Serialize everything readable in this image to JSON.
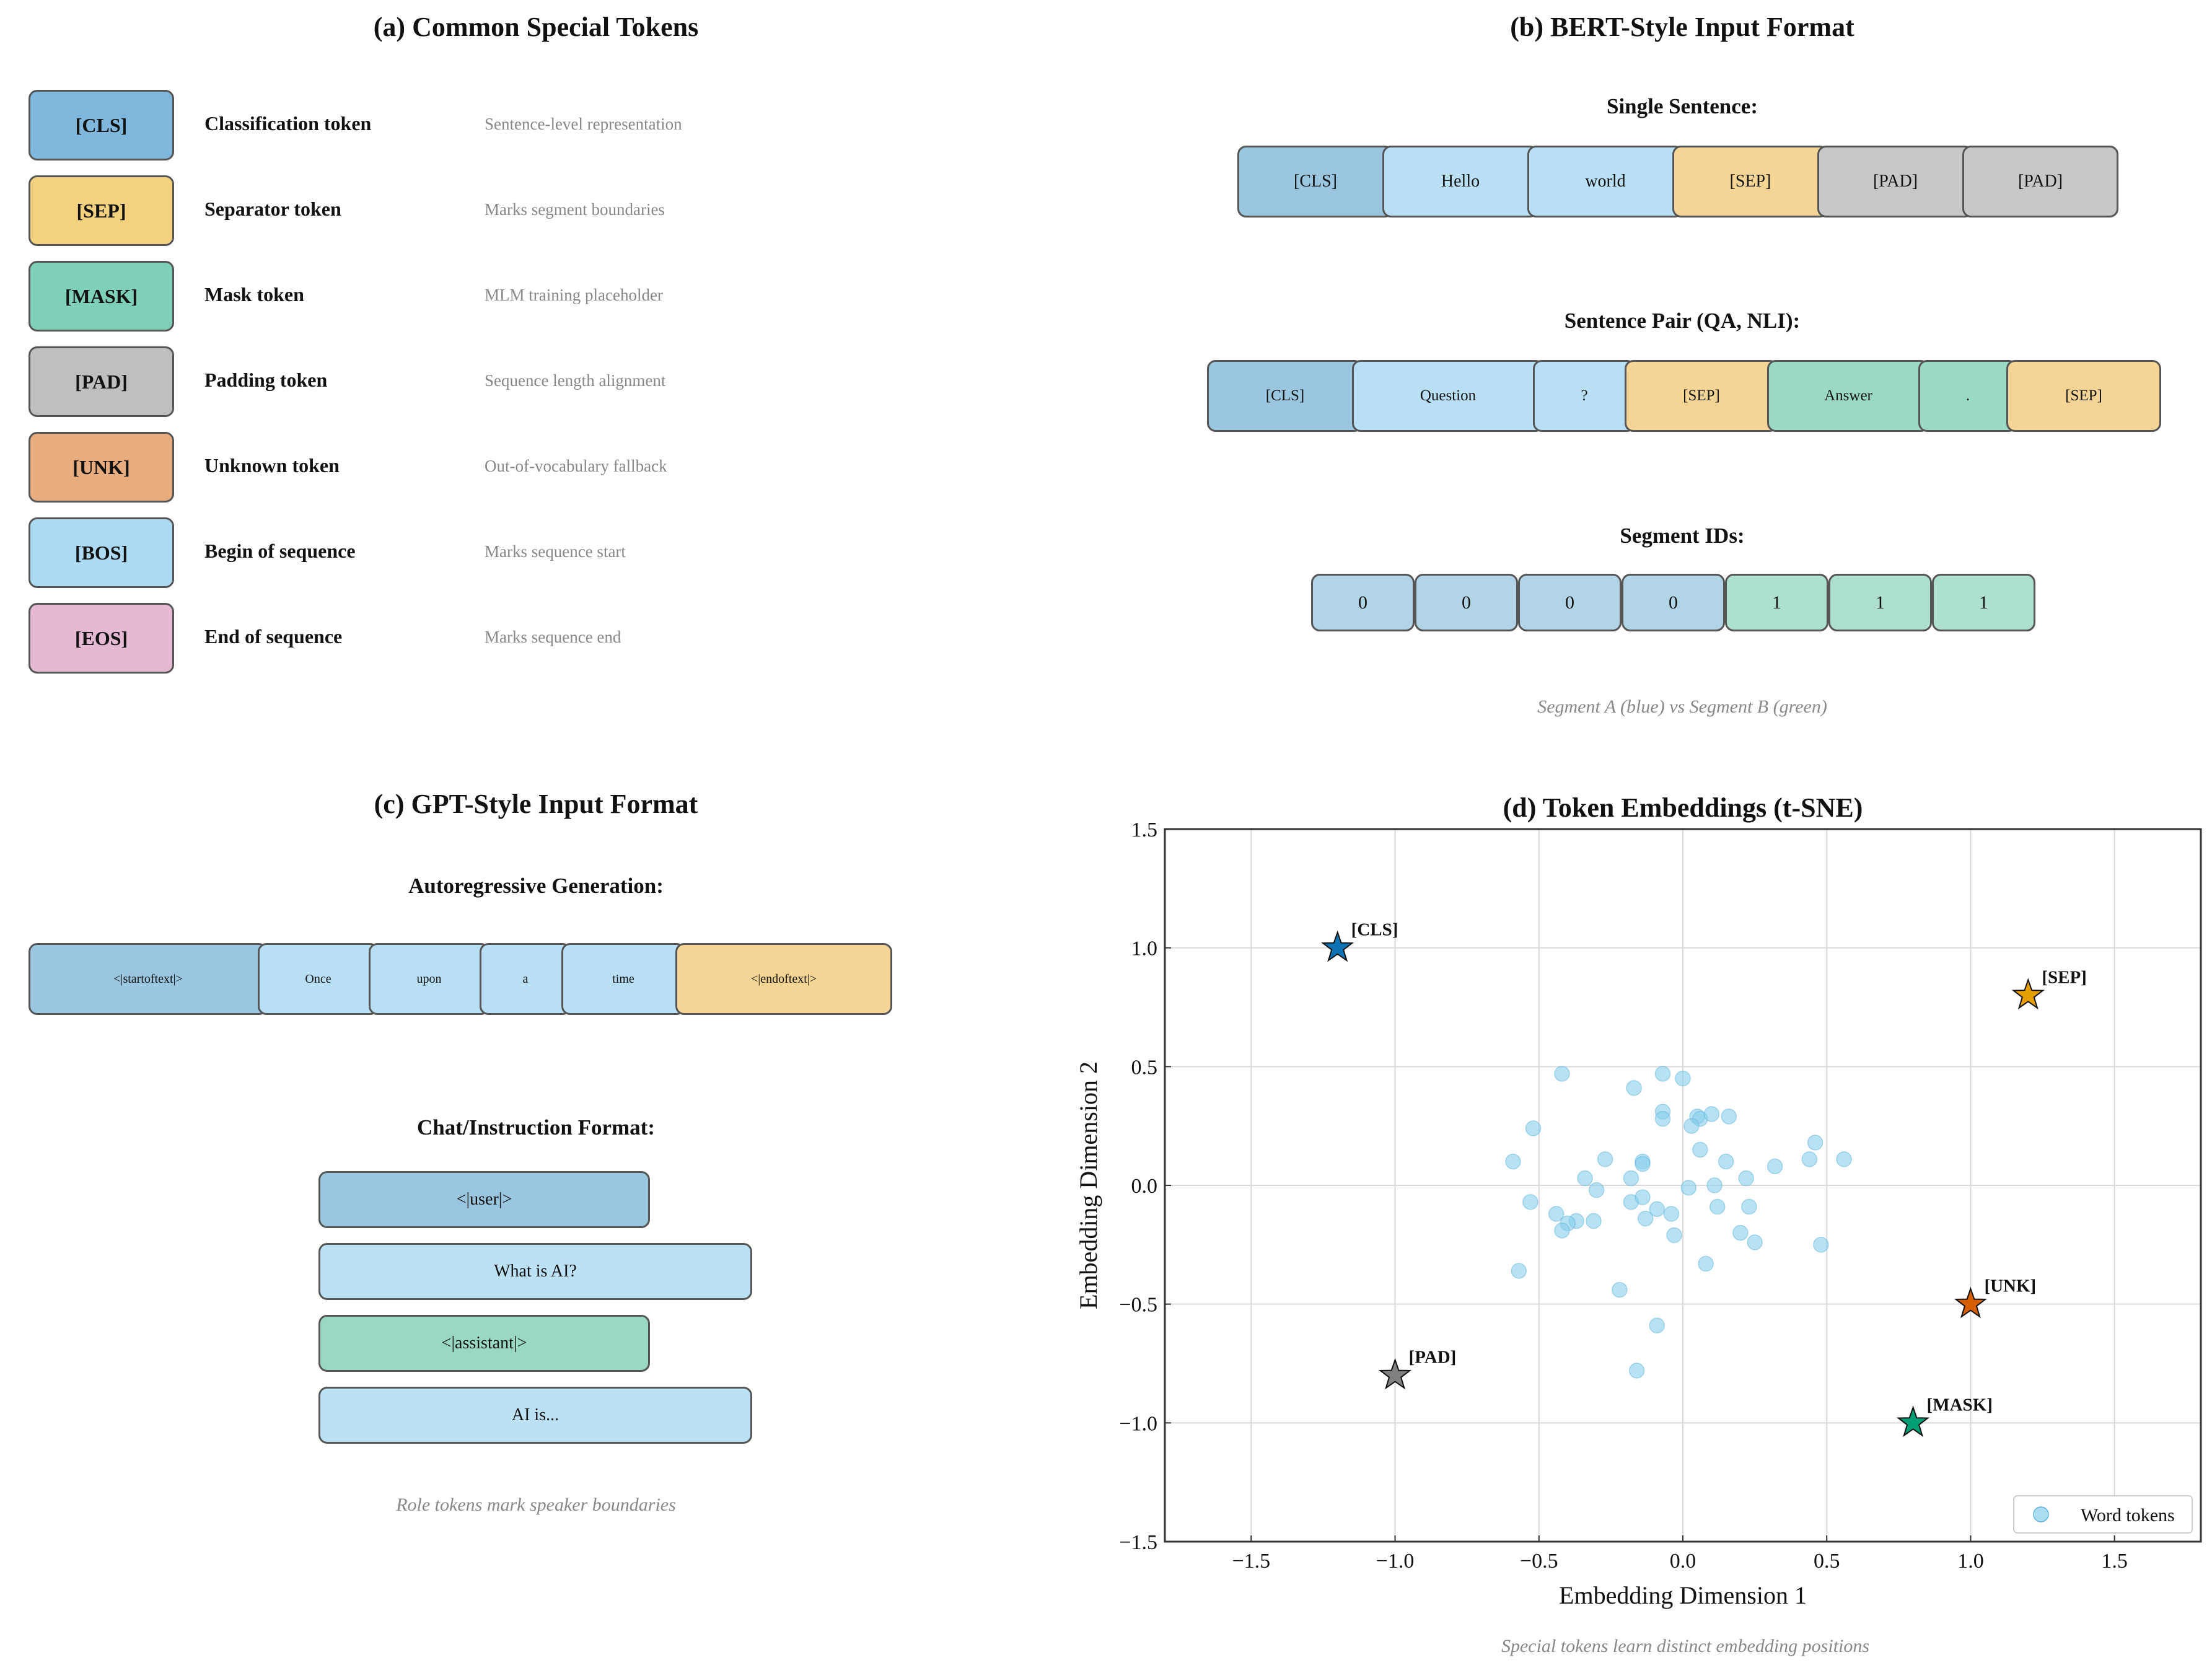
{
  "panel_a": {
    "title": "(a) Common Special Tokens",
    "tokens": [
      {
        "token": "[CLS]",
        "name": "Classification token",
        "desc": "Sentence-level representation",
        "color": "#7fb8dc"
      },
      {
        "token": "[SEP]",
        "name": "Separator token",
        "desc": "Marks segment boundaries",
        "color": "#f3d27f"
      },
      {
        "token": "[MASK]",
        "name": "Mask token",
        "desc": "MLM training placeholder",
        "color": "#7fd0b8"
      },
      {
        "token": "[PAD]",
        "name": "Padding token",
        "desc": "Sequence length alignment",
        "color": "#bfbfbf"
      },
      {
        "token": "[UNK]",
        "name": "Unknown token",
        "desc": "Out-of-vocabulary fallback",
        "color": "#e8ad7f"
      },
      {
        "token": "[BOS]",
        "name": "Begin of sequence",
        "desc": "Marks sequence start",
        "color": "#acdaf3"
      },
      {
        "token": "[EOS]",
        "name": "End of sequence",
        "desc": "Marks sequence end",
        "color": "#e5b9d1"
      }
    ]
  },
  "panel_b": {
    "title": "(b) BERT-Style Input Format",
    "single_label": "Single Sentence:",
    "single_tokens": [
      "[CLS]",
      "Hello",
      "world",
      "[SEP]",
      "[PAD]",
      "[PAD]"
    ],
    "pair_label": "Sentence Pair (QA, NLI):",
    "pair_tokens": [
      "[CLS]",
      "Question",
      "?",
      "[SEP]",
      "Answer",
      ".",
      "[SEP]"
    ],
    "segment_label": "Segment IDs:",
    "segment_ids": [
      "0",
      "0",
      "0",
      "0",
      "1",
      "1",
      "1"
    ],
    "caption": "Segment A (blue) vs Segment B (green)"
  },
  "panel_c": {
    "title": "(c) GPT-Style Input Format",
    "auto_label": "Autoregressive Generation:",
    "auto_tokens": [
      "<|startoftext|>",
      "Once",
      "upon",
      "a",
      "time",
      "<|endoftext|>"
    ],
    "chat_label": "Chat/Instruction Format:",
    "chat_lines": [
      "<|user|>",
      "What is AI?",
      "<|assistant|>",
      "AI is..."
    ],
    "caption": "Role tokens mark speaker boundaries"
  },
  "panel_d": {
    "caption": "Special tokens learn distinct embedding positions"
  },
  "chart_data": {
    "type": "scatter",
    "title": "(d) Token Embeddings (t-SNE)",
    "xlabel": "Embedding Dimension 1",
    "ylabel": "Embedding Dimension 2",
    "xlim": [
      -1.8,
      1.8
    ],
    "ylim": [
      -1.5,
      1.5
    ],
    "xticks": [
      -1.5,
      -1.0,
      -0.5,
      0.0,
      0.5,
      1.0,
      1.5
    ],
    "yticks": [
      -1.5,
      -1.0,
      -0.5,
      0.0,
      0.5,
      1.0,
      1.5
    ],
    "xtick_labels": [
      "−1.5",
      "−1.0",
      "−0.5",
      "0.0",
      "0.5",
      "1.0",
      "1.5"
    ],
    "ytick_labels": [
      "−1.5",
      "−1.0",
      "−0.5",
      "0.0",
      "0.5",
      "1.0",
      "1.5"
    ],
    "grid": true,
    "legend": {
      "label": "Word tokens",
      "placement": "lower-right"
    },
    "word_color": "#87ceeb",
    "word_tokens": [
      [
        -0.42,
        0.47
      ],
      [
        -0.07,
        0.47
      ],
      [
        0.0,
        0.45
      ],
      [
        -0.17,
        0.41
      ],
      [
        -0.07,
        0.31
      ],
      [
        -0.07,
        0.28
      ],
      [
        0.05,
        0.29
      ],
      [
        0.06,
        0.28
      ],
      [
        0.1,
        0.3
      ],
      [
        0.16,
        0.29
      ],
      [
        0.03,
        0.25
      ],
      [
        -0.52,
        0.24
      ],
      [
        0.46,
        0.18
      ],
      [
        0.06,
        0.15
      ],
      [
        0.44,
        0.11
      ],
      [
        0.56,
        0.11
      ],
      [
        -0.59,
        0.1
      ],
      [
        -0.27,
        0.11
      ],
      [
        -0.14,
        0.1
      ],
      [
        -0.14,
        0.09
      ],
      [
        0.15,
        0.1
      ],
      [
        0.32,
        0.08
      ],
      [
        -0.34,
        0.03
      ],
      [
        -0.18,
        0.03
      ],
      [
        0.22,
        0.03
      ],
      [
        -0.3,
        -0.02
      ],
      [
        0.02,
        -0.01
      ],
      [
        0.11,
        0.0
      ],
      [
        -0.53,
        -0.07
      ],
      [
        -0.18,
        -0.07
      ],
      [
        -0.14,
        -0.05
      ],
      [
        -0.09,
        -0.1
      ],
      [
        0.12,
        -0.09
      ],
      [
        0.23,
        -0.09
      ],
      [
        -0.44,
        -0.12
      ],
      [
        -0.04,
        -0.12
      ],
      [
        -0.37,
        -0.15
      ],
      [
        -0.4,
        -0.16
      ],
      [
        -0.31,
        -0.15
      ],
      [
        -0.13,
        -0.14
      ],
      [
        -0.42,
        -0.19
      ],
      [
        -0.03,
        -0.21
      ],
      [
        0.2,
        -0.2
      ],
      [
        0.25,
        -0.24
      ],
      [
        0.48,
        -0.25
      ],
      [
        -0.57,
        -0.36
      ],
      [
        0.08,
        -0.33
      ],
      [
        -0.22,
        -0.44
      ],
      [
        -0.09,
        -0.59
      ],
      [
        -0.16,
        -0.78
      ]
    ],
    "special_tokens": [
      {
        "label": "[CLS]",
        "x": -1.2,
        "y": 1.0,
        "color": "#0f72b2"
      },
      {
        "label": "[SEP]",
        "x": 1.2,
        "y": 0.8,
        "color": "#e69f00"
      },
      {
        "label": "[UNK]",
        "x": 1.0,
        "y": -0.5,
        "color": "#d55e00"
      },
      {
        "label": "[PAD]",
        "x": -1.0,
        "y": -0.8,
        "color": "#808080"
      },
      {
        "label": "[MASK]",
        "x": 0.8,
        "y": -1.0,
        "color": "#009e73"
      }
    ]
  }
}
